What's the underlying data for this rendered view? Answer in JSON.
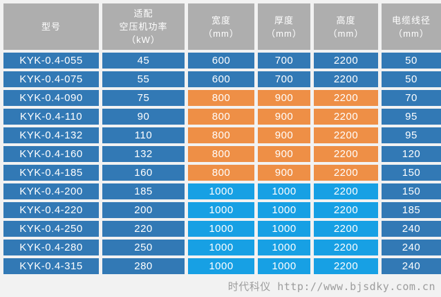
{
  "colors": {
    "header_bg": "#aeaeae",
    "blue": "#3279b5",
    "orange": "#ee8f46",
    "cyan": "#17a0e4",
    "cell_text": "#ffffff",
    "footer_text": "#9c9c9c",
    "page_bg": "#f2f2f2"
  },
  "table": {
    "columns": [
      {
        "id": "model",
        "lines": [
          "型号"
        ]
      },
      {
        "id": "power",
        "lines": [
          "适配",
          "空压机功率",
          "（kW）"
        ]
      },
      {
        "id": "width",
        "lines": [
          "宽度",
          "（mm）"
        ]
      },
      {
        "id": "thickness",
        "lines": [
          "厚度",
          "（mm）"
        ]
      },
      {
        "id": "height",
        "lines": [
          "高度",
          "（mm）"
        ]
      },
      {
        "id": "cable",
        "lines": [
          "电缆线径",
          "（mm）"
        ]
      }
    ],
    "rows": [
      {
        "model": "KYK-0.4-055",
        "power": "45",
        "width": "600",
        "thickness": "700",
        "height": "2200",
        "cable": "50",
        "band": "blue"
      },
      {
        "model": "KYK-0.4-075",
        "power": "55",
        "width": "600",
        "thickness": "700",
        "height": "2200",
        "cable": "50",
        "band": "blue"
      },
      {
        "model": "KYK-0.4-090",
        "power": "75",
        "width": "800",
        "thickness": "900",
        "height": "2200",
        "cable": "70",
        "band": "orange"
      },
      {
        "model": "KYK-0.4-110",
        "power": "90",
        "width": "800",
        "thickness": "900",
        "height": "2200",
        "cable": "95",
        "band": "orange"
      },
      {
        "model": "KYK-0.4-132",
        "power": "110",
        "width": "800",
        "thickness": "900",
        "height": "2200",
        "cable": "95",
        "band": "orange"
      },
      {
        "model": "KYK-0.4-160",
        "power": "132",
        "width": "800",
        "thickness": "900",
        "height": "2200",
        "cable": "120",
        "band": "orange"
      },
      {
        "model": "KYK-0.4-185",
        "power": "160",
        "width": "800",
        "thickness": "900",
        "height": "2200",
        "cable": "150",
        "band": "orange"
      },
      {
        "model": "KYK-0.4-200",
        "power": "185",
        "width": "1000",
        "thickness": "1000",
        "height": "2200",
        "cable": "150",
        "band": "cyan"
      },
      {
        "model": "KYK-0.4-220",
        "power": "200",
        "width": "1000",
        "thickness": "1000",
        "height": "2200",
        "cable": "185",
        "band": "cyan"
      },
      {
        "model": "KYK-0.4-250",
        "power": "220",
        "width": "1000",
        "thickness": "1000",
        "height": "2200",
        "cable": "240",
        "band": "cyan"
      },
      {
        "model": "KYK-0.4-280",
        "power": "250",
        "width": "1000",
        "thickness": "1000",
        "height": "2200",
        "cable": "240",
        "band": "cyan"
      },
      {
        "model": "KYK-0.4-315",
        "power": "280",
        "width": "1000",
        "thickness": "1000",
        "height": "2200",
        "cable": "240",
        "band": "cyan"
      }
    ]
  },
  "footer": {
    "watermark": "时代科仪 http://www.bjsdky.com.cn"
  }
}
